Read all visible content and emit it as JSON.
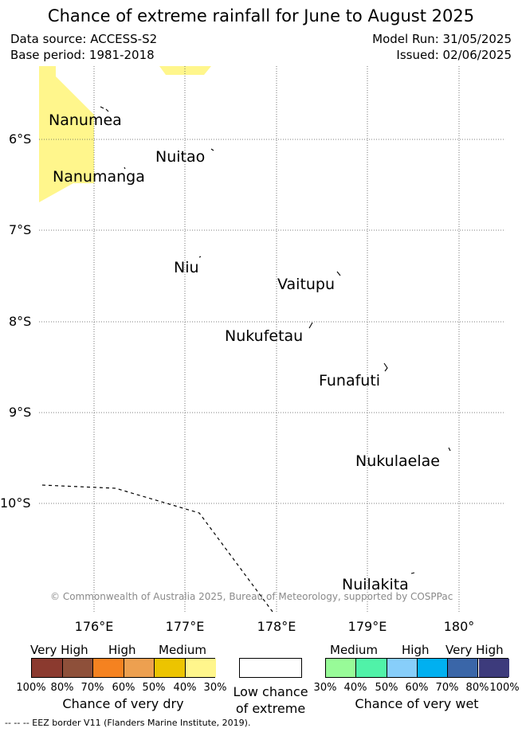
{
  "title": "Chance of extreme rainfall for June to August 2025",
  "meta": {
    "data_source": "Data source: ACCESS-S2",
    "base_period": "Base period: 1981-2018",
    "model_run": "Model Run: 31/05/2025",
    "issued": "Issued: 02/06/2025"
  },
  "axes": {
    "lat_ticks": [
      "6°S",
      "7°S",
      "8°S",
      "9°S",
      "10°S"
    ],
    "lon_ticks": [
      "176°E",
      "177°E",
      "178°E",
      "179°E",
      "180°"
    ]
  },
  "islands": {
    "nanumea": "Nanumea",
    "nuitao": "Nuitao",
    "nanumanga": "Nanumanga",
    "niu": "Niu",
    "vaitupu": "Vaitupu",
    "nukufetau": "Nukufetau",
    "funafuti": "Funafuti",
    "nukulaelae": "Nukulaelae",
    "nuilakita": "Nuilakita"
  },
  "credit": "© Commonwealth of Australia 2025, Bureau of Meteorology, supported by COSPPac",
  "legend": {
    "dry": {
      "levels": [
        "Very High",
        "High",
        "Medium"
      ],
      "colors": [
        "#8b3a2f",
        "#8e503a",
        "#f58220",
        "#eda050",
        "#ecc400",
        "#fff68c"
      ],
      "ticks": [
        "100%",
        "80%",
        "70%",
        "60%",
        "50%",
        "40%",
        "30%"
      ],
      "caption": "Chance of very dry"
    },
    "low": {
      "caption_line1": "Low chance",
      "caption_line2": "of extreme"
    },
    "wet": {
      "levels": [
        "Medium",
        "High",
        "Very High"
      ],
      "colors": [
        "#98fb98",
        "#50f2a8",
        "#87cefa",
        "#00b0f0",
        "#3a66a8",
        "#3d3b7c"
      ],
      "ticks": [
        "30%",
        "40%",
        "50%",
        "60%",
        "70%",
        "80%",
        "100%"
      ],
      "caption": "Chance of very wet"
    }
  },
  "eez_note": "--  --  -- EEZ border V11 (Flanders Marine Institute, 2019).",
  "colors": {
    "dry_medium_fill": "#fff68c",
    "eez_line": "#000000",
    "gridline": "#555555"
  }
}
